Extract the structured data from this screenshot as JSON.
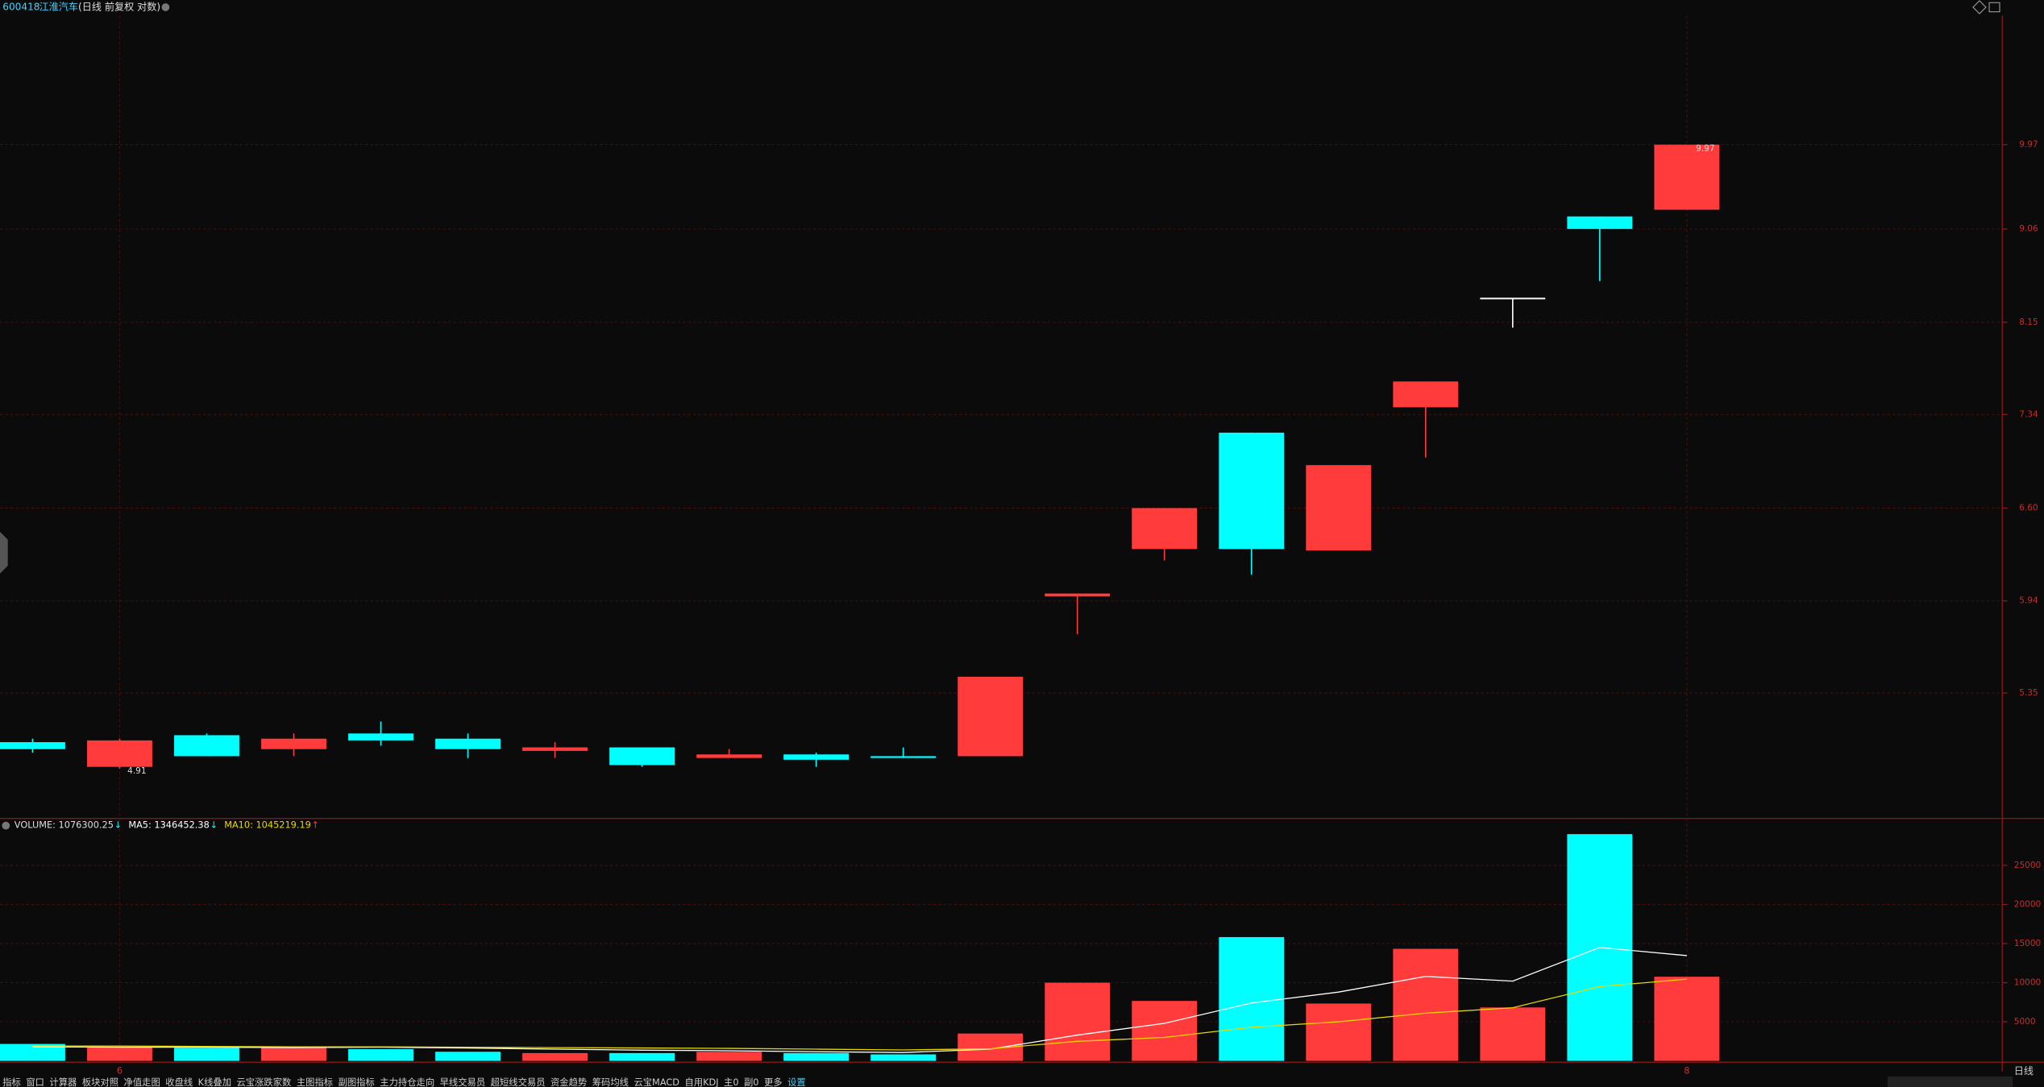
{
  "header": {
    "code": "600418",
    "name": "江淮汽车",
    "mode": "(日线 前复权 对数)"
  },
  "chart_data": [
    {
      "type": "candlestick",
      "categories": [
        null,
        "6",
        null,
        null,
        null,
        null,
        null,
        null,
        null,
        null,
        null,
        null,
        null,
        null,
        null,
        null,
        null,
        null,
        null,
        "8"
      ],
      "open": [
        5.06,
        4.92,
        5.1,
        5.02,
        5.11,
        5.08,
        5.01,
        5.03,
        4.97,
        4.99,
        4.98,
        4.98,
        5.97,
        6.3,
        7.19,
        6.29,
        7.4,
        8.38,
        9.19,
        9.26
      ],
      "high": [
        5.08,
        5.08,
        5.11,
        5.11,
        5.18,
        5.11,
        5.06,
        5.03,
        5.02,
        5.0,
        5.03,
        5.45,
        5.99,
        6.6,
        7.19,
        6.93,
        7.62,
        8.38,
        9.19,
        9.97
      ],
      "low": [
        5.0,
        4.91,
        4.98,
        4.98,
        5.04,
        4.97,
        4.97,
        4.92,
        4.97,
        4.92,
        4.97,
        4.98,
        5.72,
        6.22,
        6.12,
        6.29,
        6.99,
        8.1,
        8.54,
        9.26
      ],
      "close": [
        5.02,
        5.07,
        4.98,
        5.08,
        5.07,
        5.02,
        5.03,
        4.93,
        4.99,
        4.96,
        4.97,
        5.45,
        5.99,
        6.6,
        6.3,
        6.93,
        7.62,
        8.38,
        9.06,
        9.97
      ],
      "up_color": "#ff3b3b",
      "down_color": "#00ffff",
      "doji_color": "#ffffff",
      "log_scale": true,
      "grid": true,
      "ylim": [
        4.64,
        11.44
      ],
      "yticks": [
        5.35,
        5.94,
        {
          "value": 6.6,
          "label": "6.60"
        },
        7.34,
        8.15,
        9.06,
        9.97
      ],
      "low_label": "4.91",
      "high_label": "9.97"
    },
    {
      "type": "volume",
      "values": [
        2167,
        1833,
        1667,
        1667,
        1500,
        1167,
        1000,
        1000,
        1167,
        1000,
        833,
        3500,
        10000,
        7667,
        15833,
        7333,
        14333,
        6833,
        29000,
        10763
      ],
      "name": "VOLUME: 1076300.25",
      "trend": "↓",
      "color": "#dddddd",
      "series": [
        {
          "name": "MA5: 1346452.38",
          "trend": "↓",
          "color": "#ffffff",
          "values": [
            1800,
            1750,
            1750,
            1700,
            1750,
            1650,
            1500,
            1370,
            1300,
            1170,
            1070,
            1500,
            3300,
            4800,
            7400,
            8800,
            10800,
            10200,
            14500,
            13464.52
          ]
        },
        {
          "name": "MA10: 1045219.19",
          "trend": "↑",
          "color": "#e6d800",
          "values": [
            1900,
            1900,
            1850,
            1800,
            1800,
            1750,
            1700,
            1650,
            1600,
            1500,
            1400,
            1550,
            2500,
            3000,
            4300,
            5000,
            6100,
            6800,
            9500,
            10452.19
          ]
        }
      ],
      "ylim": [
        0,
        31000
      ],
      "yticks": [
        5000,
        10000,
        15000,
        20000,
        25000
      ],
      "grid": true
    }
  ],
  "toolbar": [
    "指标",
    "窗口",
    "计算器",
    "板块对照",
    "净值走图",
    "收盘线",
    "K线叠加",
    "云宝涨跌家数",
    "主图指标",
    "副图指标",
    "主力持仓走向",
    "早线交易员",
    "超短线交易员",
    "资金趋势",
    "筹码均线",
    "云宝MACD",
    "自用KDJ",
    "主0",
    "副0",
    "更多",
    "设置"
  ],
  "footer_right": "日线"
}
